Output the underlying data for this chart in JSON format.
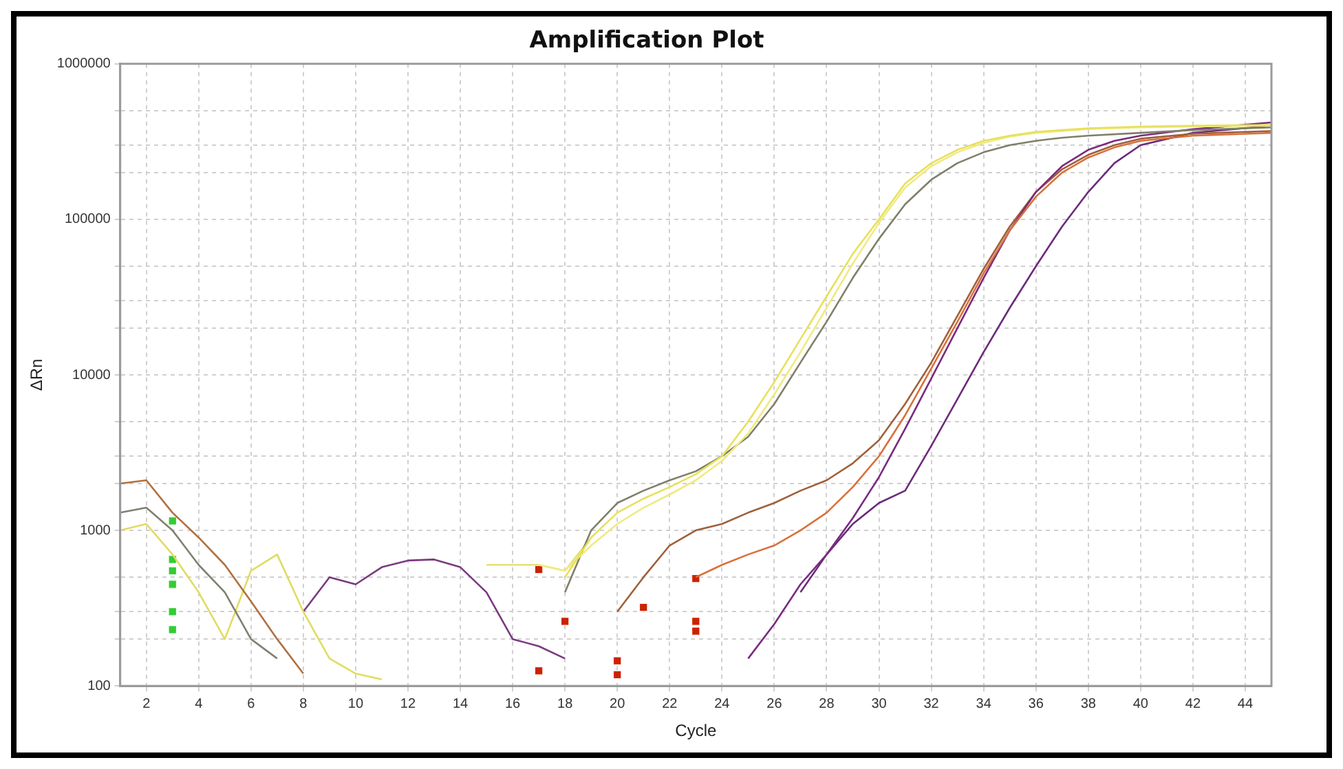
{
  "chart_data": {
    "type": "line",
    "title": "Amplification Plot",
    "xlabel": "Cycle",
    "ylabel": "ΔRn",
    "log": true,
    "grid": true,
    "marker": "none",
    "line_style": "solid",
    "xlim": [
      1,
      45
    ],
    "xticks": [
      2,
      4,
      6,
      8,
      10,
      12,
      14,
      16,
      18,
      20,
      22,
      24,
      26,
      28,
      30,
      32,
      34,
      36,
      38,
      40,
      42,
      44
    ],
    "ylim": [
      100,
      1000000
    ],
    "yticks": [
      100,
      {
        "value": 200,
        "label": null
      },
      {
        "value": 300,
        "label": null
      },
      {
        "value": 500,
        "label": null
      },
      1000,
      {
        "value": 2000,
        "label": null
      },
      {
        "value": 3000,
        "label": null
      },
      {
        "value": 5000,
        "label": null
      },
      10000,
      {
        "value": 20000,
        "label": null
      },
      {
        "value": 30000,
        "label": null
      },
      {
        "value": 50000,
        "label": null
      },
      100000,
      {
        "value": 200000,
        "label": null
      },
      {
        "value": 300000,
        "label": null
      },
      {
        "value": 500000,
        "label": null
      },
      1000000
    ],
    "series": [
      {
        "color": "#e8e05a",
        "x": [
          18,
          19,
          20,
          21,
          22,
          23,
          24,
          25,
          26,
          27,
          28,
          29,
          30,
          31,
          32,
          33,
          34,
          35,
          36,
          37,
          38,
          39,
          40,
          42,
          45
        ],
        "values": [
          500,
          900,
          1300,
          1600,
          1900,
          2300,
          3000,
          5000,
          9000,
          17000,
          32000,
          60000,
          100000,
          170000,
          230000,
          280000,
          320000,
          345000,
          365000,
          375000,
          385000,
          390000,
          395000,
          400000,
          405000
        ]
      },
      {
        "color": "#f0ea80",
        "x": [
          17,
          18,
          19,
          20,
          21,
          22,
          23,
          24,
          25,
          26,
          27,
          28,
          29,
          30,
          31,
          32,
          33,
          34,
          35,
          36,
          38,
          40,
          42,
          45
        ],
        "values": [
          600,
          550,
          800,
          1100,
          1400,
          1700,
          2100,
          2800,
          4200,
          7500,
          14000,
          27000,
          52000,
          95000,
          160000,
          220000,
          270000,
          310000,
          340000,
          360000,
          380000,
          390000,
          395000,
          400000
        ]
      },
      {
        "color": "#7f7f6a",
        "x": [
          18,
          19,
          20,
          21,
          22,
          23,
          24,
          25,
          26,
          27,
          28,
          29,
          30,
          31,
          32,
          33,
          34,
          35,
          36,
          37,
          38,
          40,
          42,
          45
        ],
        "values": [
          400,
          1000,
          1500,
          1800,
          2100,
          2400,
          3000,
          4000,
          6500,
          12000,
          22000,
          42000,
          75000,
          125000,
          180000,
          230000,
          270000,
          300000,
          320000,
          335000,
          345000,
          360000,
          375000,
          390000
        ]
      },
      {
        "color": "#d9703a",
        "x": [
          23,
          24,
          25,
          26,
          27,
          28,
          29,
          30,
          31,
          32,
          33,
          34,
          35,
          36,
          37,
          38,
          39,
          40,
          42,
          45
        ],
        "values": [
          500,
          600,
          700,
          800,
          1000,
          1300,
          1900,
          3000,
          5500,
          11000,
          22000,
          45000,
          85000,
          140000,
          200000,
          250000,
          290000,
          320000,
          345000,
          360000
        ]
      },
      {
        "color": "#7a2a80",
        "x": [
          25,
          26,
          27,
          28,
          29,
          30,
          31,
          32,
          33,
          34,
          35,
          36,
          37,
          38,
          39,
          40,
          42,
          45
        ],
        "values": [
          150,
          250,
          450,
          700,
          1200,
          2200,
          4500,
          9500,
          20000,
          42000,
          85000,
          150000,
          220000,
          280000,
          320000,
          345000,
          380000,
          420000
        ]
      },
      {
        "color": "#a0603a",
        "x": [
          20,
          21,
          22,
          23,
          24,
          25,
          26,
          27,
          28,
          29,
          30,
          31,
          32,
          33,
          34,
          35,
          36,
          37,
          38,
          39,
          40,
          42,
          45
        ],
        "values": [
          300,
          500,
          800,
          1000,
          1100,
          1300,
          1500,
          1800,
          2100,
          2700,
          3800,
          6500,
          12000,
          24000,
          48000,
          90000,
          150000,
          210000,
          260000,
          300000,
          330000,
          355000,
          370000
        ]
      },
      {
        "color": "#6a2b7a",
        "x": [
          27,
          28,
          29,
          30,
          31,
          32,
          33,
          34,
          35,
          36,
          37,
          38,
          39,
          40,
          42,
          45
        ],
        "values": [
          400,
          700,
          1100,
          1500,
          1800,
          3500,
          7000,
          14000,
          27000,
          50000,
          90000,
          150000,
          230000,
          300000,
          360000,
          400000
        ]
      },
      {
        "color": "#b07040",
        "x": [
          1,
          2,
          3,
          4,
          5,
          6,
          7,
          8
        ],
        "values": [
          2000,
          2100,
          1300,
          900,
          600,
          350,
          200,
          120
        ]
      },
      {
        "color": "#808070",
        "x": [
          1,
          2,
          3,
          4,
          5,
          6,
          7
        ],
        "values": [
          1300,
          1400,
          1000,
          600,
          400,
          200,
          150
        ]
      },
      {
        "color": "#e0dc60",
        "x": [
          1,
          2,
          3,
          4,
          5,
          6,
          7,
          8,
          9,
          10,
          11
        ],
        "values": [
          1000,
          1100,
          700,
          400,
          200,
          550,
          700,
          300,
          150,
          120,
          110
        ]
      },
      {
        "color": "#7a3a80",
        "x": [
          8,
          9,
          10,
          11,
          12,
          13,
          14,
          15,
          16,
          17,
          18
        ],
        "values": [
          300,
          500,
          450,
          580,
          640,
          650,
          580,
          400,
          200,
          180,
          150
        ]
      },
      {
        "color": "#e8e070",
        "x": [
          15,
          16,
          17,
          18,
          19
        ],
        "values": [
          600,
          600,
          600,
          550,
          900
        ]
      },
      {
        "type": "scatter",
        "marker": "square",
        "color": "#33cc33",
        "x": [
          3,
          3,
          3,
          3,
          3,
          3
        ],
        "values": [
          1150,
          650,
          550,
          450,
          300,
          230
        ]
      },
      {
        "type": "scatter",
        "marker": "square",
        "color": "#cc2200",
        "x": [
          17,
          17,
          18,
          20,
          20,
          21,
          23,
          23,
          23
        ],
        "values": [
          560,
          125,
          260,
          145,
          118,
          320,
          490,
          260,
          225
        ]
      }
    ]
  }
}
